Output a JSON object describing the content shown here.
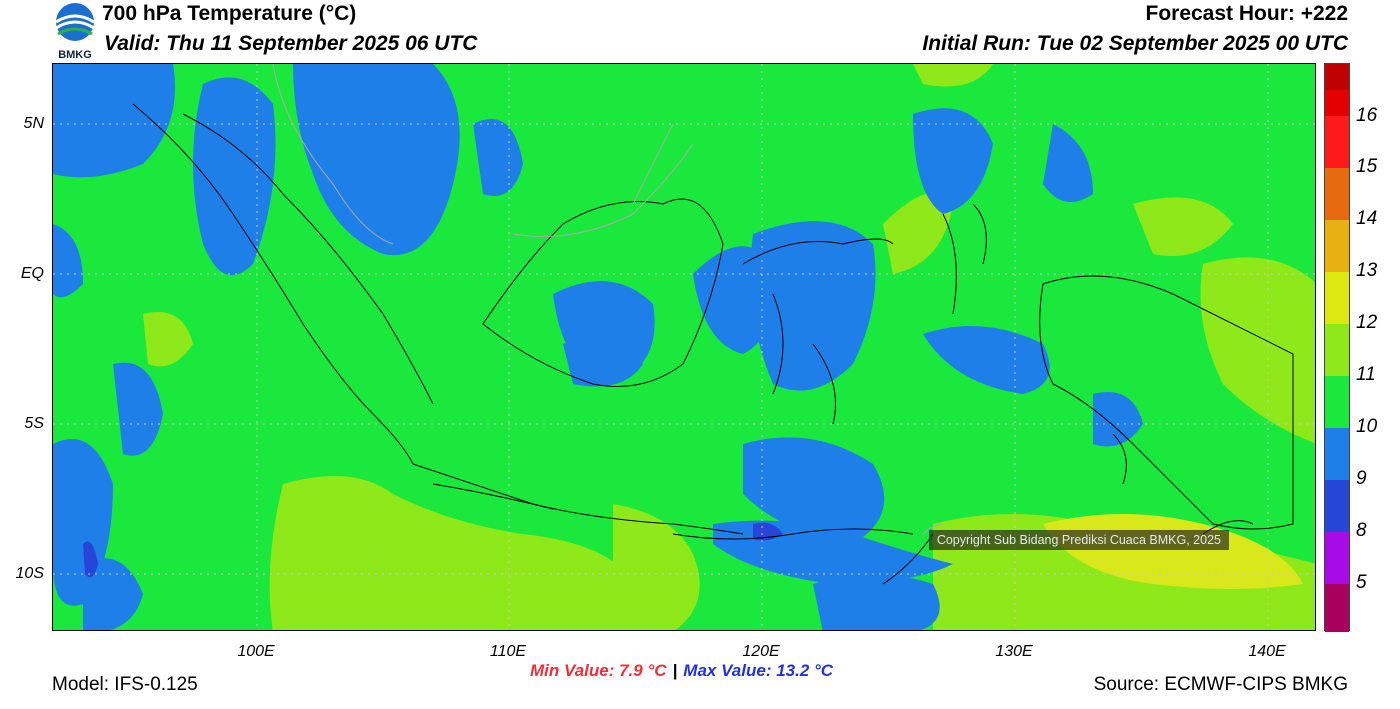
{
  "header": {
    "title": "700 hPa Temperature (°C)",
    "valid": "Valid: Thu 11 September 2025 06 UTC",
    "forecast_hour": "Forecast Hour: +222",
    "initial_run": "Initial Run: Tue 02 September 2025 00 UTC",
    "logo_text": "BMKG"
  },
  "map": {
    "lat_labels": [
      "5N",
      "EQ",
      "5S",
      "10S"
    ],
    "lon_labels": [
      "100E",
      "110E",
      "120E",
      "130E",
      "140E"
    ],
    "copyright": "Copyright Sub Bidang Prediksi Cuaca BMKG, 2025"
  },
  "colorbar": {
    "labels": [
      "16",
      "15",
      "14",
      "13",
      "12",
      "11",
      "10",
      "9",
      "8",
      "5"
    ],
    "colors": [
      "#c00000",
      "#e50000",
      "#ff1a1a",
      "#e86a10",
      "#e8b010",
      "#dde810",
      "#8ee81a",
      "#1ae83c",
      "#1f7fe8",
      "#2646d8",
      "#a80ae8",
      "#a8005c"
    ]
  },
  "footer": {
    "model": "Model: IFS-0.125",
    "min_value": "Min Value: 7.9 °C",
    "separator": "|",
    "max_value": "Max Value: 13.2 °C",
    "source": "Source: ECMWF-CIPS BMKG"
  },
  "palette": {
    "green": "#1ae83c",
    "light_green": "#8ee81a",
    "yellow_green": "#d8e81a",
    "blue": "#1f7fe8",
    "dark_blue": "#2646d8"
  }
}
